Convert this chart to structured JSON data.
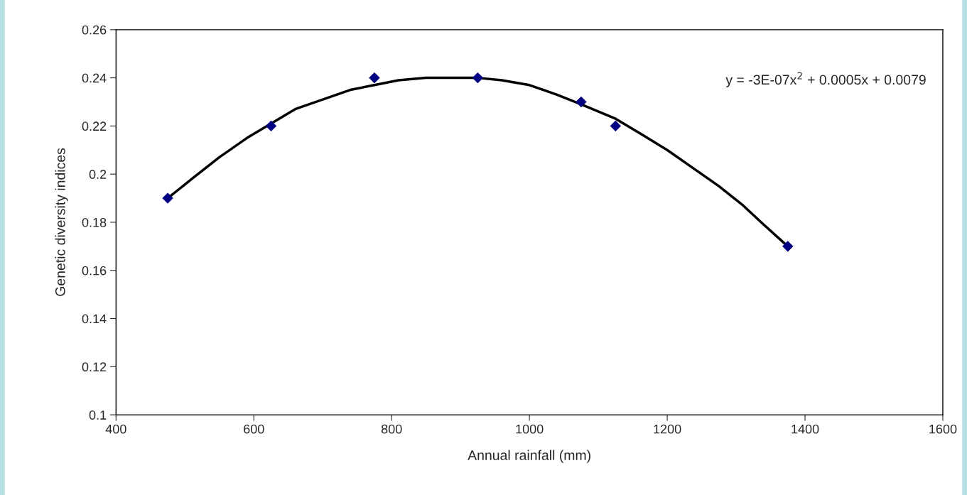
{
  "chart_data": {
    "type": "scatter",
    "xlabel": "Annual rainfall (mm)",
    "ylabel": "Genetic diversity indices",
    "marker": "diamond",
    "grid": false,
    "legend": false,
    "xlim": [
      400,
      1600
    ],
    "xticks": [
      400,
      600,
      800,
      1000,
      1200,
      1400,
      1600
    ],
    "ylim": [
      0.1,
      0.26
    ],
    "yticks": [
      0.1,
      0.12,
      0.14,
      0.16,
      0.18,
      0.2,
      0.22,
      0.24,
      0.26
    ],
    "annotations": [
      "y = -3E-07x$^{2}$ + 0.0005x + 0.0079"
    ],
    "series": [
      {
        "color": "#000080",
        "x": [
          475,
          625,
          775,
          925,
          1075,
          1125,
          1375
        ],
        "values": [
          0.19,
          0.22,
          0.24,
          0.24,
          0.23,
          0.22,
          0.17
        ]
      },
      {
        "type": "line",
        "color": "#000000",
        "marker": "none",
        "line_style": "solid",
        "x": [
          475,
          510,
          550,
          590,
          625,
          660,
          700,
          740,
          775,
          810,
          850,
          890,
          925,
          960,
          1000,
          1040,
          1075,
          1125,
          1160,
          1200,
          1240,
          1275,
          1310,
          1340,
          1375
        ],
        "values": [
          0.19,
          0.198,
          0.207,
          0.215,
          0.221,
          0.227,
          0.231,
          0.235,
          0.237,
          0.239,
          0.24,
          0.24,
          0.24,
          0.239,
          0.237,
          0.233,
          0.229,
          0.223,
          0.217,
          0.21,
          0.202,
          0.195,
          0.187,
          0.179,
          0.17
        ]
      }
    ]
  }
}
